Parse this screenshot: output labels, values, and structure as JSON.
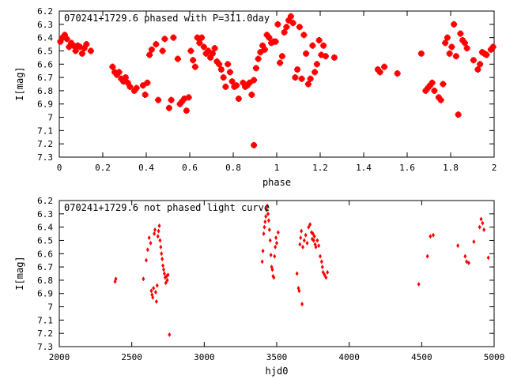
{
  "colors": {
    "points": "#ff0000",
    "axes": "#000000",
    "background": "#ffffff"
  },
  "chart_data": [
    {
      "type": "scatter",
      "title": "070241+1729.6 phased with P=311.0day",
      "xlabel": "phase",
      "ylabel": "I[mag]",
      "xlim": [
        0,
        2
      ],
      "ylim": [
        7.3,
        6.2
      ],
      "y_inverted": true,
      "xticks": [
        "0",
        "0.2",
        "0.4",
        "0.6",
        "0.8",
        "1",
        "1.2",
        "1.4",
        "1.6",
        "1.8",
        "2"
      ],
      "yticks": [
        "6.2",
        "6.3",
        "6.4",
        "6.5",
        "6.6",
        "6.7",
        "6.8",
        "6.9",
        "7",
        "7.1",
        "7.2",
        "7.3"
      ],
      "marker": "asterisk",
      "points": [
        [
          0.005,
          6.43
        ],
        [
          0.015,
          6.4
        ],
        [
          0.025,
          6.38
        ],
        [
          0.035,
          6.41
        ],
        [
          0.045,
          6.47
        ],
        [
          0.055,
          6.44
        ],
        [
          0.065,
          6.46
        ],
        [
          0.075,
          6.5
        ],
        [
          0.085,
          6.46
        ],
        [
          0.095,
          6.47
        ],
        [
          0.105,
          6.52
        ],
        [
          0.115,
          6.48
        ],
        [
          0.125,
          6.45
        ],
        [
          0.145,
          6.5
        ],
        [
          0.245,
          6.62
        ],
        [
          0.255,
          6.66
        ],
        [
          0.265,
          6.68
        ],
        [
          0.275,
          6.66
        ],
        [
          0.285,
          6.71
        ],
        [
          0.295,
          6.73
        ],
        [
          0.305,
          6.7
        ],
        [
          0.315,
          6.74
        ],
        [
          0.325,
          6.77
        ],
        [
          0.345,
          6.8
        ],
        [
          0.355,
          6.78
        ],
        [
          0.385,
          6.76
        ],
        [
          0.395,
          6.83
        ],
        [
          0.405,
          6.74
        ],
        [
          0.415,
          6.53
        ],
        [
          0.425,
          6.49
        ],
        [
          0.445,
          6.45
        ],
        [
          0.455,
          6.87
        ],
        [
          0.475,
          6.5
        ],
        [
          0.485,
          6.41
        ],
        [
          0.505,
          6.93
        ],
        [
          0.515,
          6.87
        ],
        [
          0.525,
          6.4
        ],
        [
          0.545,
          6.56
        ],
        [
          0.555,
          6.9
        ],
        [
          0.565,
          6.88
        ],
        [
          0.575,
          6.86
        ],
        [
          0.585,
          6.95
        ],
        [
          0.595,
          6.85
        ],
        [
          0.605,
          6.5
        ],
        [
          0.615,
          6.57
        ],
        [
          0.625,
          6.62
        ],
        [
          0.635,
          6.4
        ],
        [
          0.645,
          6.44
        ],
        [
          0.655,
          6.4
        ],
        [
          0.665,
          6.47
        ],
        [
          0.675,
          6.52
        ],
        [
          0.685,
          6.5
        ],
        [
          0.695,
          6.55
        ],
        [
          0.705,
          6.52
        ],
        [
          0.715,
          6.48
        ],
        [
          0.725,
          6.58
        ],
        [
          0.735,
          6.6
        ],
        [
          0.745,
          6.64
        ],
        [
          0.755,
          6.7
        ],
        [
          0.765,
          6.77
        ],
        [
          0.775,
          6.6
        ],
        [
          0.785,
          6.66
        ],
        [
          0.795,
          6.73
        ],
        [
          0.805,
          6.77
        ],
        [
          0.815,
          6.76
        ],
        [
          0.825,
          6.86
        ],
        [
          0.845,
          6.74
        ],
        [
          0.855,
          6.77
        ],
        [
          0.865,
          6.76
        ],
        [
          0.875,
          6.74
        ],
        [
          0.885,
          6.83
        ],
        [
          0.895,
          6.72
        ],
        [
          0.905,
          6.63
        ],
        [
          0.915,
          6.56
        ],
        [
          0.925,
          6.51
        ],
        [
          0.935,
          6.46
        ],
        [
          0.945,
          6.49
        ],
        [
          0.955,
          6.38
        ],
        [
          0.965,
          6.4
        ],
        [
          0.975,
          6.44
        ],
        [
          0.985,
          6.43
        ],
        [
          0.995,
          6.43
        ],
        [
          0.895,
          7.21
        ],
        [
          1.005,
          6.3
        ],
        [
          1.015,
          6.59
        ],
        [
          1.025,
          6.54
        ],
        [
          1.035,
          6.36
        ],
        [
          1.045,
          6.32
        ],
        [
          1.055,
          6.27
        ],
        [
          1.065,
          6.24
        ],
        [
          1.075,
          6.29
        ],
        [
          1.085,
          6.7
        ],
        [
          1.095,
          6.64
        ],
        [
          1.105,
          6.32
        ],
        [
          1.115,
          6.71
        ],
        [
          1.125,
          6.38
        ],
        [
          1.135,
          6.52
        ],
        [
          1.145,
          6.75
        ],
        [
          1.155,
          6.71
        ],
        [
          1.165,
          6.46
        ],
        [
          1.175,
          6.66
        ],
        [
          1.185,
          6.6
        ],
        [
          1.195,
          6.42
        ],
        [
          1.205,
          6.53
        ],
        [
          1.215,
          6.46
        ],
        [
          1.225,
          6.54
        ],
        [
          1.265,
          6.55
        ],
        [
          1.465,
          6.64
        ],
        [
          1.475,
          6.66
        ],
        [
          1.495,
          6.62
        ],
        [
          1.555,
          6.67
        ],
        [
          1.665,
          6.52
        ],
        [
          1.685,
          6.8
        ],
        [
          1.695,
          6.78
        ],
        [
          1.705,
          6.76
        ],
        [
          1.715,
          6.74
        ],
        [
          1.725,
          6.8
        ],
        [
          1.745,
          6.85
        ],
        [
          1.755,
          6.87
        ],
        [
          1.765,
          6.75
        ],
        [
          1.775,
          6.44
        ],
        [
          1.785,
          6.4
        ],
        [
          1.795,
          6.52
        ],
        [
          1.805,
          6.47
        ],
        [
          1.815,
          6.3
        ],
        [
          1.825,
          6.54
        ],
        [
          1.835,
          6.98
        ],
        [
          1.845,
          6.37
        ],
        [
          1.855,
          6.42
        ],
        [
          1.865,
          6.44
        ],
        [
          1.875,
          6.48
        ],
        [
          1.905,
          6.57
        ],
        [
          1.925,
          6.64
        ],
        [
          1.935,
          6.6
        ],
        [
          1.945,
          6.51
        ],
        [
          1.955,
          6.52
        ],
        [
          1.965,
          6.53
        ],
        [
          1.985,
          6.49
        ],
        [
          1.995,
          6.47
        ]
      ]
    },
    {
      "type": "scatter",
      "title": "070241+1729.6 not phased light curve",
      "xlabel": "hjd0",
      "ylabel": "I[mag]",
      "xlim": [
        2000,
        5000
      ],
      "ylim": [
        7.3,
        6.2
      ],
      "y_inverted": true,
      "xticks": [
        "2000",
        "2500",
        "3000",
        "3500",
        "4000",
        "4500",
        "5000"
      ],
      "yticks": [
        "6.2",
        "6.3",
        "6.4",
        "6.5",
        "6.6",
        "6.7",
        "6.8",
        "6.9",
        "7",
        "7.1",
        "7.2",
        "7.3"
      ],
      "marker": "diamond",
      "points": [
        [
          2385,
          6.81
        ],
        [
          2390,
          6.79
        ],
        [
          2580,
          6.79
        ],
        [
          2600,
          6.65
        ],
        [
          2610,
          6.57
        ],
        [
          2620,
          6.48
        ],
        [
          2630,
          6.52
        ],
        [
          2635,
          6.88
        ],
        [
          2640,
          6.91
        ],
        [
          2645,
          6.93
        ],
        [
          2650,
          6.86
        ],
        [
          2655,
          6.45
        ],
        [
          2660,
          6.42
        ],
        [
          2665,
          6.89
        ],
        [
          2670,
          6.96
        ],
        [
          2675,
          6.84
        ],
        [
          2680,
          6.47
        ],
        [
          2685,
          6.43
        ],
        [
          2690,
          6.39
        ],
        [
          2695,
          6.5
        ],
        [
          2700,
          6.55
        ],
        [
          2705,
          6.6
        ],
        [
          2710,
          6.64
        ],
        [
          2715,
          6.69
        ],
        [
          2720,
          6.72
        ],
        [
          2725,
          6.75
        ],
        [
          2730,
          6.78
        ],
        [
          2735,
          6.82
        ],
        [
          2740,
          6.77
        ],
        [
          2745,
          6.8
        ],
        [
          2750,
          6.76
        ],
        [
          2760,
          7.21
        ],
        [
          3400,
          6.66
        ],
        [
          3405,
          6.58
        ],
        [
          3410,
          6.45
        ],
        [
          3415,
          6.4
        ],
        [
          3420,
          6.36
        ],
        [
          3425,
          6.32
        ],
        [
          3430,
          6.27
        ],
        [
          3435,
          6.24
        ],
        [
          3440,
          6.3
        ],
        [
          3445,
          6.35
        ],
        [
          3450,
          6.42
        ],
        [
          3455,
          6.5
        ],
        [
          3460,
          6.61
        ],
        [
          3465,
          6.7
        ],
        [
          3470,
          6.72
        ],
        [
          3475,
          6.77
        ],
        [
          3480,
          6.78
        ],
        [
          3485,
          6.62
        ],
        [
          3490,
          6.55
        ],
        [
          3495,
          6.48
        ],
        [
          3500,
          6.52
        ],
        [
          3510,
          6.44
        ],
        [
          3640,
          6.75
        ],
        [
          3650,
          6.86
        ],
        [
          3655,
          6.88
        ],
        [
          3660,
          6.53
        ],
        [
          3665,
          6.48
        ],
        [
          3670,
          6.43
        ],
        [
          3675,
          6.98
        ],
        [
          3680,
          6.55
        ],
        [
          3690,
          6.5
        ],
        [
          3700,
          6.46
        ],
        [
          3710,
          6.52
        ],
        [
          3720,
          6.4
        ],
        [
          3730,
          6.38
        ],
        [
          3740,
          6.44
        ],
        [
          3745,
          6.49
        ],
        [
          3750,
          6.45
        ],
        [
          3755,
          6.5
        ],
        [
          3760,
          6.47
        ],
        [
          3765,
          6.53
        ],
        [
          3770,
          6.55
        ],
        [
          3780,
          6.5
        ],
        [
          3790,
          6.54
        ],
        [
          3800,
          6.62
        ],
        [
          3810,
          6.66
        ],
        [
          3815,
          6.7
        ],
        [
          3820,
          6.74
        ],
        [
          3830,
          6.76
        ],
        [
          3840,
          6.78
        ],
        [
          3850,
          6.74
        ],
        [
          4480,
          6.83
        ],
        [
          4540,
          6.62
        ],
        [
          4560,
          6.47
        ],
        [
          4580,
          6.46
        ],
        [
          4750,
          6.54
        ],
        [
          4800,
          6.62
        ],
        [
          4810,
          6.66
        ],
        [
          4825,
          6.67
        ],
        [
          4860,
          6.51
        ],
        [
          4900,
          6.4
        ],
        [
          4910,
          6.34
        ],
        [
          4920,
          6.37
        ],
        [
          4930,
          6.42
        ],
        [
          4960,
          6.63
        ]
      ]
    }
  ]
}
